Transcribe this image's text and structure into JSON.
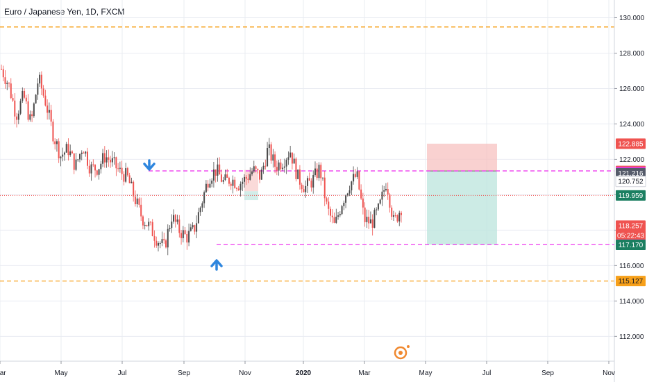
{
  "chart_data": {
    "type": "candlestick",
    "title": "Euro / Japanese Yen, 1D, FXCM",
    "y_ticks": [
      112,
      114,
      116,
      118,
      120,
      122,
      124,
      126,
      128,
      130
    ],
    "y_tick_labels": [
      "112.000",
      "114.000",
      "116.000",
      "118.000",
      "120.000",
      "122.000",
      "124.000",
      "126.000",
      "128.000",
      "130.000"
    ],
    "ylim": [
      110.6,
      131.0
    ],
    "x_labels": [
      {
        "label": "Mar",
        "x": 0,
        "bold": false
      },
      {
        "label": "May",
        "x": 88,
        "bold": false
      },
      {
        "label": "Jul",
        "x": 176,
        "bold": false
      },
      {
        "label": "Sep",
        "x": 265,
        "bold": false
      },
      {
        "label": "Nov",
        "x": 353,
        "bold": false
      },
      {
        "label": "2020",
        "x": 437,
        "bold": true
      },
      {
        "label": "Mar",
        "x": 525,
        "bold": false
      },
      {
        "label": "May",
        "x": 613,
        "bold": false
      },
      {
        "label": "Jul",
        "x": 701,
        "bold": false
      },
      {
        "label": "Sep",
        "x": 789,
        "bold": false
      },
      {
        "label": "Nov",
        "x": 877,
        "bold": false
      }
    ],
    "close_path": [
      127.1,
      126.2,
      124.5,
      125.6,
      124.0,
      126.6,
      125.2,
      123.4,
      122.2,
      122.6,
      121.6,
      122.8,
      121.5,
      121.5,
      122.2,
      121.8,
      121.3,
      121.0,
      119.8,
      118.7,
      118.2,
      117.5,
      117.0,
      118.8,
      118.0,
      117.6,
      118.0,
      119.5,
      121.0,
      121.4,
      120.7,
      120.9,
      120.6,
      120.9,
      121.4,
      121.0,
      122.6,
      121.6,
      121.9,
      122.5,
      121.0,
      120.4,
      120.8,
      121.5,
      119.2,
      118.2,
      119.6,
      120.6,
      121.1,
      118.6,
      118.4,
      119.2,
      120.8,
      118.4,
      119.3
    ],
    "levels": [
      {
        "value": 129.478,
        "label": "129.478",
        "style": "orange-dashed",
        "color": "#f7a01a",
        "text_color": "#131722"
      },
      {
        "value": 121.346,
        "label": "121.346",
        "style": "magenta-dashed",
        "color": "#ee37ee",
        "text_color": "#ffffff"
      },
      {
        "value": 117.182,
        "label": "117.182",
        "style": "magenta-dashed",
        "color": "#ee37ee",
        "text_color": "#ffffff"
      },
      {
        "value": 115.127,
        "label": "115.127",
        "style": "orange-dashed",
        "color": "#f7a01a",
        "text_color": "#131722"
      },
      {
        "value": 119.959,
        "label": "119.959",
        "style": "red-dotted",
        "color": "#ef5350",
        "text_color": "#ffffff"
      }
    ],
    "price_badges": [
      {
        "value": 122.885,
        "label": "122.885",
        "bg": "#ef5350",
        "fg": "#ffffff"
      },
      {
        "value": 121.346,
        "label": "121.346",
        "bg": "#ef5350",
        "fg": "#ffffff"
      },
      {
        "value": 121.279,
        "label": "121.279",
        "bg": "#ee37ee",
        "fg": "#ffffff"
      },
      {
        "value": 121.216,
        "label": "121.216",
        "bg": "#555b6a",
        "fg": "#ffffff"
      },
      {
        "value": 120.752,
        "label": "120.752",
        "bg": "#ffffff",
        "fg": "#131722"
      },
      {
        "value": 119.959,
        "label": "119.959",
        "bg": "#1b7f61",
        "fg": "#ffffff"
      },
      {
        "value": 118.257,
        "label": "118.257",
        "bg": "#ef5350",
        "fg": "#ffffff"
      },
      {
        "value": 117.7,
        "label": "05:22:43",
        "bg": "#ef5350",
        "fg": "#ffffff"
      },
      {
        "value": 117.182,
        "label": "117.182",
        "bg": "#ee37ee",
        "fg": "#ffffff"
      },
      {
        "value": 117.17,
        "label": "117.170",
        "bg": "#1b7f61",
        "fg": "#ffffff"
      },
      {
        "value": 115.127,
        "label": "115.127",
        "bg": "#f7a01a",
        "fg": "#131722"
      }
    ],
    "position": {
      "stop": 122.885,
      "entry": 121.346,
      "target": 117.182
    },
    "colors": {
      "up": "#26a69a",
      "down": "#ef5350",
      "grid": "#e9ecf2",
      "magenta": "#ee37ee",
      "arrow": "#2e86de"
    }
  }
}
